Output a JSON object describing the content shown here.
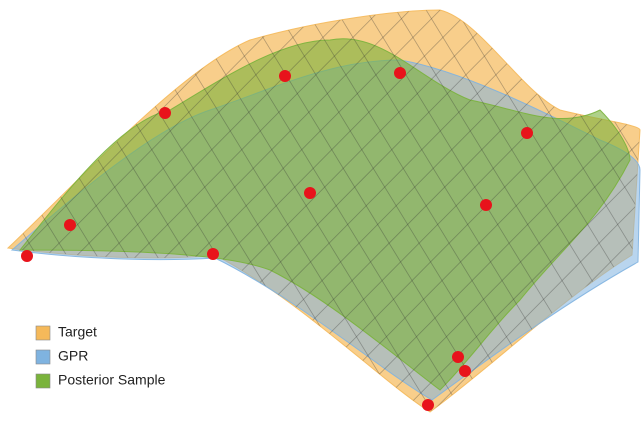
{
  "chart_data": {
    "type": "surface",
    "series": [
      {
        "name": "Target",
        "color": "#f5b95a"
      },
      {
        "name": "GPR",
        "color": "#7fb3e0"
      },
      {
        "name": "Posterior Sample",
        "color": "#7ab33c"
      }
    ]
  }
}
